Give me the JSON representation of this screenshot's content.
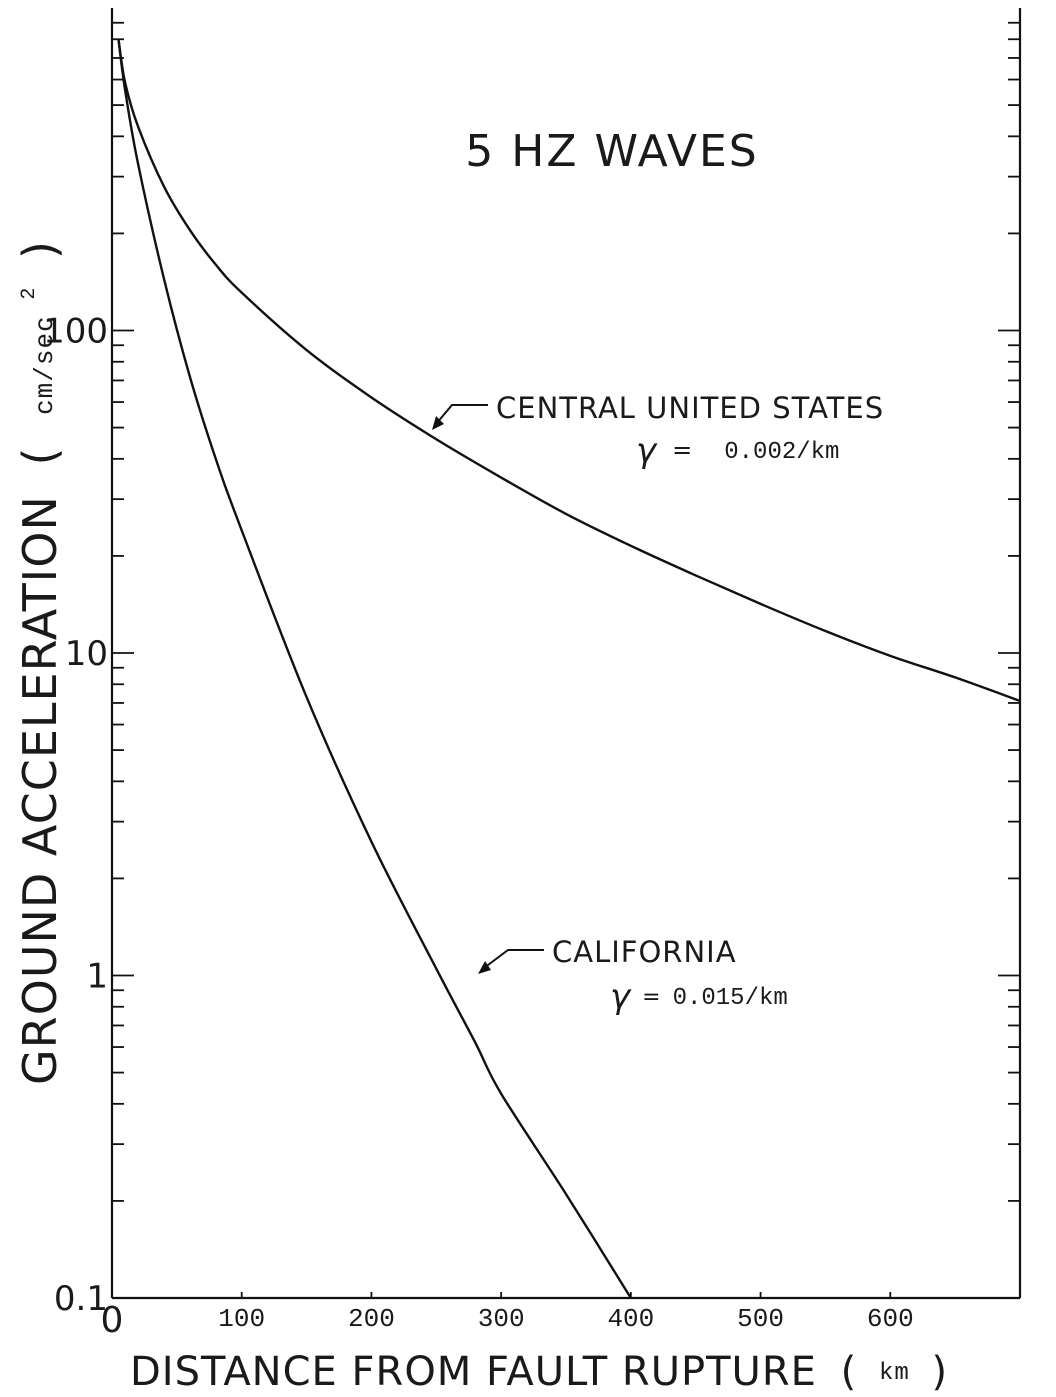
{
  "chart_data": {
    "type": "line",
    "title": "5 HZ WAVES",
    "xlabel": "DISTANCE FROM FAULT RUPTURE",
    "xlabel_unit": "km",
    "ylabel": "GROUND ACCELERATION",
    "ylabel_unit": "cm/sec",
    "ylabel_unit_exponent": "2",
    "xscale": "linear",
    "yscale": "log",
    "xlim": [
      0,
      700
    ],
    "ylim": [
      0.1,
      1000
    ],
    "x_ticks": [
      {
        "value": 0,
        "label": "0"
      },
      {
        "value": 100,
        "label": "100"
      },
      {
        "value": 200,
        "label": "200"
      },
      {
        "value": 300,
        "label": "300"
      },
      {
        "value": 400,
        "label": "400"
      },
      {
        "value": 500,
        "label": "500"
      },
      {
        "value": 600,
        "label": "600"
      }
    ],
    "y_ticks": [
      {
        "value": 0.1,
        "label": "0.1"
      },
      {
        "value": 1,
        "label": "1"
      },
      {
        "value": 10,
        "label": "10"
      },
      {
        "value": 100,
        "label": "100"
      }
    ],
    "grid": false,
    "series": [
      {
        "name": "CENTRAL UNITED STATES",
        "annotation_gamma": "0.002/km",
        "x": [
          5,
          10,
          20,
          40,
          60,
          80,
          100,
          150,
          200,
          250,
          300,
          350,
          400,
          450,
          500,
          550,
          600,
          650,
          700
        ],
        "y": [
          800,
          590,
          430,
          280,
          205,
          160,
          131,
          87,
          62,
          46,
          35,
          27,
          21.5,
          17.4,
          14.2,
          11.7,
          9.8,
          8.4,
          7.1
        ]
      },
      {
        "name": "CALIFORNIA",
        "annotation_gamma": "0.015/km",
        "x": [
          5,
          10,
          20,
          40,
          60,
          80,
          100,
          150,
          200,
          250,
          280,
          300,
          350,
          400
        ],
        "y": [
          800,
          560,
          330,
          145,
          72,
          40,
          24,
          7.3,
          2.6,
          1.05,
          0.62,
          0.43,
          0.21,
          0.1
        ]
      }
    ],
    "annotations": {
      "gamma_symbol": "γ",
      "equals": "="
    }
  }
}
